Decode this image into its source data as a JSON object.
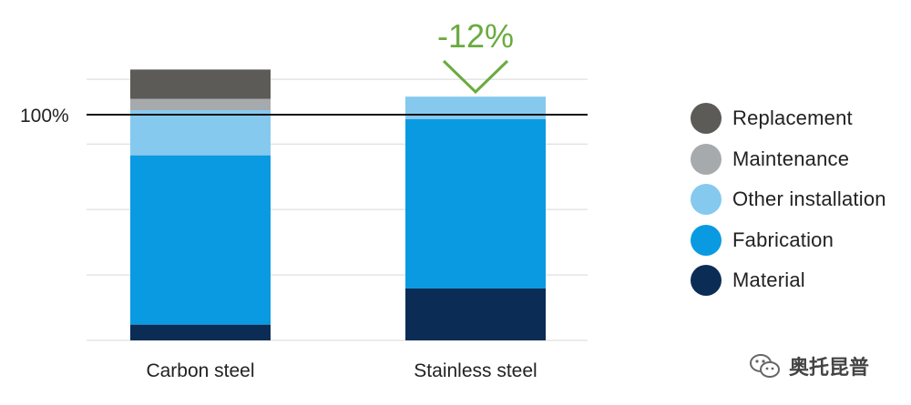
{
  "chart_data": {
    "type": "bar",
    "stacked": true,
    "categories": [
      "Carbon steel",
      "Stainless steel"
    ],
    "series": [
      {
        "name": "Material",
        "color": "#0b2d55",
        "values": [
          7,
          23
        ]
      },
      {
        "name": "Fabrication",
        "color": "#0a9ae2",
        "values": [
          75,
          75
        ]
      },
      {
        "name": "Other installation",
        "color": "#85c9ef",
        "values": [
          20,
          10
        ]
      },
      {
        "name": "Maintenance",
        "color": "#a7aaac",
        "values": [
          5,
          0
        ]
      },
      {
        "name": "Replacement",
        "color": "#5c5b57",
        "values": [
          13,
          0
        ]
      }
    ],
    "reference_line": {
      "label": "100%",
      "value": 100
    },
    "annotation": {
      "text": "-12%",
      "color": "#6aab3f",
      "category": "Stainless steel"
    },
    "ylim": [
      0,
      120
    ],
    "grid": true,
    "legend_position": "right",
    "title": "",
    "xlabel": "",
    "ylabel": ""
  },
  "legend_order": [
    "Replacement",
    "Maintenance",
    "Other installation",
    "Fabrication",
    "Material"
  ],
  "watermark": {
    "text": "奥托昆普",
    "icon": "wechat-icon"
  }
}
